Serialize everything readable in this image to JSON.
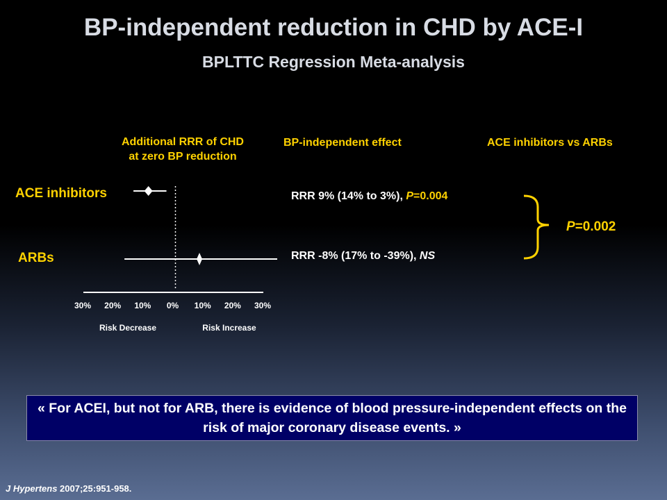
{
  "title": "BP-independent reduction in CHD by ACE-I",
  "subtitle": "BPLTTC Regression Meta-analysis",
  "column_headers": {
    "forest": "Additional RRR of CHD\nat zero BP reduction",
    "effect": "BP-independent effect",
    "comparison": "ACE inhibitors vs ARBs"
  },
  "rows": [
    {
      "label": "ACE inhibitors",
      "rrr_prefix": "RRR  9% (14% to 3%), ",
      "p_letter": "P",
      "p_value": "=0.004"
    },
    {
      "label": "ARBs",
      "rrr_prefix": "RRR  -8% (17% to -39%), ",
      "ns": "NS"
    }
  ],
  "comparison_p": {
    "letter": "P",
    "value": "=0.002"
  },
  "quote": "« For ACEI, but not for ARB, there is evidence of blood pressure-independent effects on the risk of major coronary disease events. »",
  "citation": {
    "journal": "J Hypertens",
    "rest": " 2007;25:951-958."
  },
  "colors": {
    "accent": "#ffd200",
    "quote_bg": "#000066"
  },
  "chart_data": {
    "type": "forest",
    "x_unit": "% risk change (negative = risk decrease)",
    "xlim": [
      -30,
      30
    ],
    "tick_labels": [
      "30%",
      "20%",
      "10%",
      "0%",
      "10%",
      "20%",
      "30%"
    ],
    "tick_values": [
      -30,
      -20,
      -10,
      0,
      10,
      20,
      30
    ],
    "xlabel_left": "Risk Decrease",
    "xlabel_right": "Risk Increase",
    "reference_line": 0,
    "series": [
      {
        "name": "ACE inhibitors",
        "estimate": -9,
        "ci": [
          -14,
          -3
        ]
      },
      {
        "name": "ARBs",
        "estimate": 8,
        "ci": [
          -17,
          39
        ]
      }
    ]
  }
}
